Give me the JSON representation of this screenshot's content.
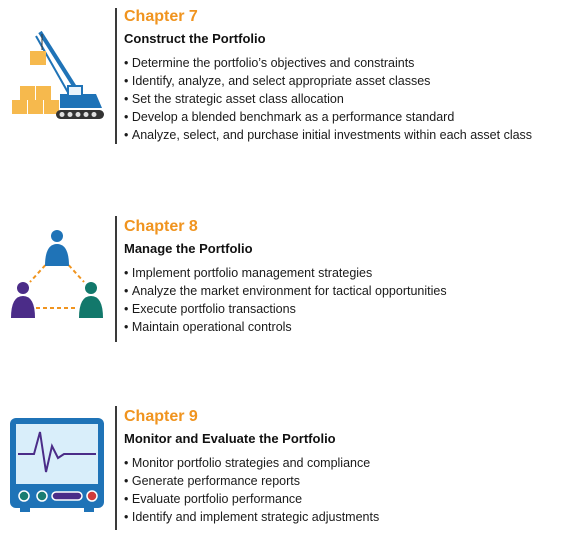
{
  "chapters": [
    {
      "chapter": "Chapter 7",
      "title": "Construct the Portfolio",
      "bullets": [
        "Determine the portfolio’s objectives and constraints",
        "Identify, analyze, and select appropriate asset classes",
        "Set the strategic asset class allocation",
        "Develop a blended benchmark as a performance standard",
        "Analyze, select, and purchase initial investments within each asset class"
      ],
      "icon": "crane-icon"
    },
    {
      "chapter": "Chapter 8",
      "title": "Manage the Portfolio",
      "bullets": [
        "Implement portfolio management strategies",
        "Analyze the market environment for tactical opportunities",
        "Execute portfolio transactions",
        "Maintain operational controls"
      ],
      "icon": "team-network-icon"
    },
    {
      "chapter": "Chapter 9",
      "title": "Monitor and Evaluate the Portfolio",
      "bullets": [
        "Monitor portfolio strategies and compliance",
        "Generate performance reports",
        "Evaluate portfolio performance",
        "Identify and implement strategic adjustments"
      ],
      "icon": "heart-monitor-icon"
    }
  ],
  "colors": {
    "accent_orange": "#f0941f",
    "box_yellow": "#f6b94d",
    "crane_blue": "#1f73b7",
    "person_purple": "#4b2c88",
    "person_teal": "#12786b",
    "monitor_blue": "#1f73b7",
    "monitor_screen": "#d9eefa",
    "pulse_purple": "#4b2c88",
    "knob_red": "#d03b3b",
    "knob_teal": "#1a7d72"
  }
}
